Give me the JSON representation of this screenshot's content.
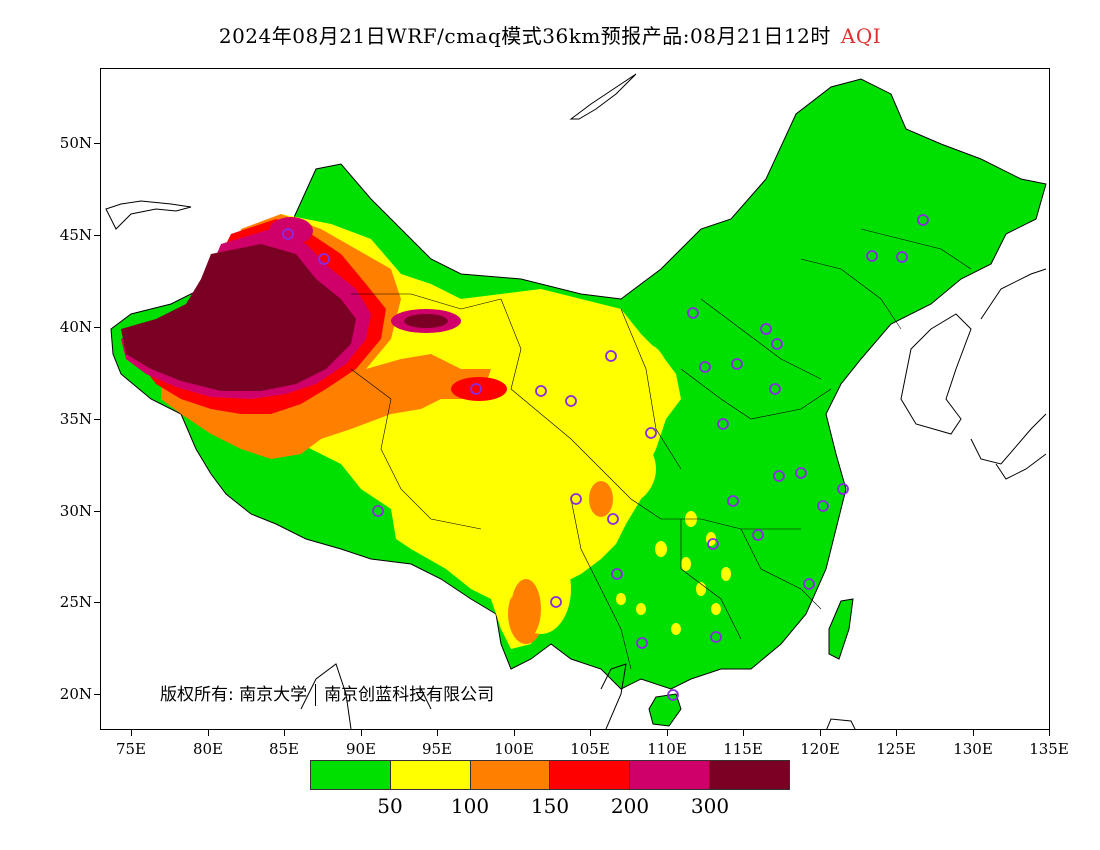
{
  "title": {
    "main": "2024年08月21日WRF/cmaq模式36km预报产品:08月21日12时",
    "variable": "AQI"
  },
  "axes": {
    "y_labels": [
      "50N",
      "45N",
      "40N",
      "35N",
      "30N",
      "25N",
      "20N"
    ],
    "x_labels": [
      "75E",
      "80E",
      "85E",
      "90E",
      "95E",
      "100E",
      "105E",
      "110E",
      "115E",
      "120E",
      "125E",
      "130E",
      "135E"
    ]
  },
  "copyright": {
    "label": "版权所有:",
    "org1": "南京大学",
    "org2": "南京创蓝科技有限公司"
  },
  "legend": {
    "colors": [
      "#00e000",
      "#ffff00",
      "#ff8000",
      "#ff0000",
      "#d0006a",
      "#7a0024"
    ],
    "labels": [
      "50",
      "100",
      "150",
      "200",
      "300"
    ]
  }
}
